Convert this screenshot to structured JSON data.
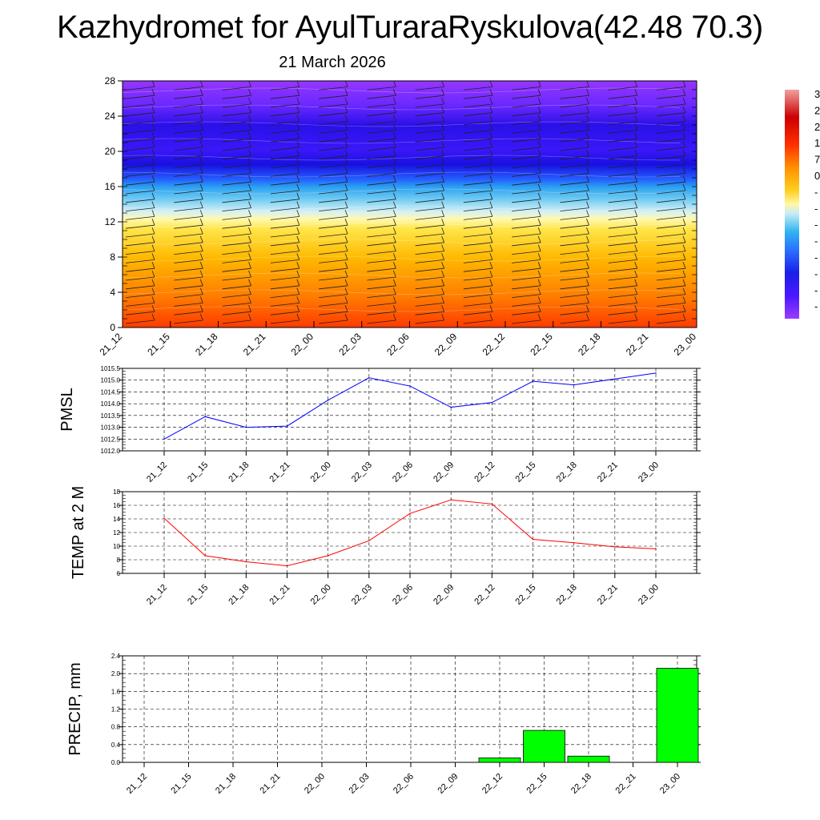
{
  "title": "Kazhydromet for AyulTuraraRyskulova(42.48 70.3)",
  "subtitle": "21 March 2026",
  "time_labels": [
    "21_12",
    "21_15",
    "21_18",
    "21_21",
    "22_00",
    "22_03",
    "22_06",
    "22_09",
    "22_12",
    "22_15",
    "22_18",
    "22_21",
    "23_00"
  ],
  "colorbar_labels": [
    "3",
    "2",
    "2",
    "1",
    "7",
    "0",
    "-",
    "-",
    "-",
    "-",
    "-",
    "-",
    "-",
    "-"
  ],
  "chart_data": [
    {
      "type": "heatmap",
      "title": "",
      "xlabel": "",
      "ylabel": "",
      "x": [
        "21_12",
        "21_15",
        "21_18",
        "21_21",
        "22_00",
        "22_03",
        "22_06",
        "22_09",
        "22_12",
        "22_15",
        "22_18",
        "22_21",
        "23_00"
      ],
      "y_ticks": [
        0,
        4,
        8,
        12,
        16,
        20,
        24,
        28
      ],
      "ylim": [
        0,
        28
      ],
      "note_levels": "temperature by height level; warm (orange/red) near surface, cold (blue/purple) aloft, with wind barbs at each time and level",
      "colorscale": [
        "#ff3000",
        "#ff8000",
        "#ffc400",
        "#fff7a0",
        "#c8ecf8",
        "#30b0ee",
        "#3060ff",
        "#2010e0",
        "#5010ff",
        "#8030ff",
        "#a040ff"
      ]
    },
    {
      "type": "line",
      "ylabel": "PMSL",
      "x": [
        "21_12",
        "21_15",
        "21_18",
        "21_21",
        "22_00",
        "22_03",
        "22_06",
        "22_09",
        "22_12",
        "22_15",
        "22_18",
        "22_21",
        "23_00"
      ],
      "values": [
        1012.5,
        1013.45,
        1013.0,
        1013.05,
        1014.15,
        1015.1,
        1014.75,
        1013.85,
        1014.05,
        1014.95,
        1014.8,
        1015.05,
        1015.3
      ],
      "ylim": [
        1012.0,
        1015.5
      ],
      "y_ticks": [
        "1012.0",
        "1012.5",
        "1013.0",
        "1013.5",
        "1014.0",
        "1014.5",
        "1015.0",
        "1015.5"
      ],
      "color": "#0000ff",
      "grid": true
    },
    {
      "type": "line",
      "ylabel": "TEMP at 2 M",
      "x": [
        "21_12",
        "21_15",
        "21_18",
        "21_21",
        "22_00",
        "22_03",
        "22_06",
        "22_09",
        "22_12",
        "22_15",
        "22_18",
        "22_21",
        "23_00"
      ],
      "values": [
        14.1,
        8.6,
        7.7,
        7.1,
        8.6,
        10.8,
        14.8,
        16.8,
        16.2,
        11.0,
        10.5,
        9.9,
        9.6
      ],
      "ylim": [
        6,
        18
      ],
      "y_ticks": [
        "6",
        "8",
        "10",
        "12",
        "14",
        "16",
        "18"
      ],
      "color": "#ff0000",
      "grid": true
    },
    {
      "type": "bar",
      "ylabel": "PRECIP, mm",
      "categories": [
        "21_12",
        "21_15",
        "21_18",
        "21_21",
        "22_00",
        "22_03",
        "22_06",
        "22_09",
        "22_12",
        "22_15",
        "22_18",
        "22_21",
        "23_00"
      ],
      "values": [
        0,
        0,
        0,
        0,
        0,
        0,
        0,
        0,
        0.1,
        0.72,
        0.14,
        0,
        2.12
      ],
      "ylim": [
        0,
        2.4
      ],
      "y_ticks": [
        "0.0",
        "0.4",
        "0.8",
        "1.2",
        "1.6",
        "2.0",
        "2.4"
      ],
      "color": "#00ff00",
      "grid": true
    }
  ]
}
